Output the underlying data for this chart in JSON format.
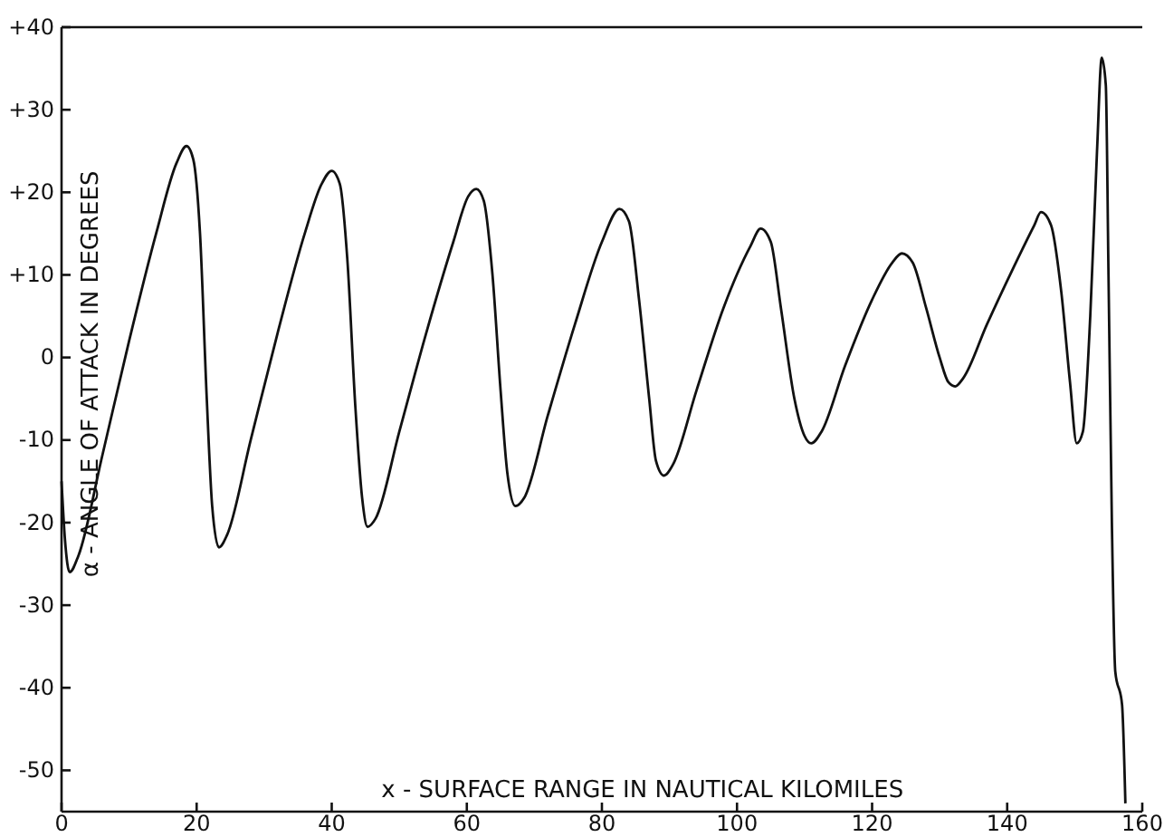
{
  "chart_data": {
    "type": "line",
    "xlabel": "x - SURFACE RANGE IN NAUTICAL KILOMILES",
    "ylabel": "α - ANGLE OF ATTACK IN DEGREES",
    "xlim": [
      0,
      160
    ],
    "ylim": [
      -55,
      40
    ],
    "xticks": [
      0,
      20,
      40,
      60,
      80,
      100,
      120,
      140,
      160
    ],
    "yticks": [
      {
        "value": 40,
        "label": "+40"
      },
      {
        "value": 30,
        "label": "+30"
      },
      {
        "value": 20,
        "label": "+20"
      },
      {
        "value": 10,
        "label": "+10"
      },
      0,
      {
        "value": -10,
        "label": "-10"
      },
      {
        "value": -20,
        "label": "-20"
      },
      {
        "value": -30,
        "label": "-30"
      },
      {
        "value": -40,
        "label": "-40"
      },
      {
        "value": -50,
        "label": "-50"
      }
    ],
    "grid": false,
    "line_style": "solid",
    "color": "#111111",
    "x": [
      0,
      0.5,
      1.2,
      2.5,
      6,
      10,
      14,
      17,
      18.5,
      19.5,
      20.5,
      21.5,
      22.3,
      23.3,
      24.5,
      28,
      32,
      36,
      38.5,
      40,
      41.2,
      42.3,
      43.5,
      44.5,
      45.3,
      46.5,
      50,
      54,
      58,
      60.2,
      61.4,
      62.5,
      63.8,
      65,
      66,
      67.2,
      68.5,
      72,
      76,
      80,
      82.6,
      84,
      85.5,
      87,
      88,
      89.2,
      90.5,
      94,
      98,
      102,
      103.5,
      105,
      106.5,
      108.5,
      110,
      111,
      112.5,
      116,
      120,
      123,
      124.4,
      126,
      128,
      130,
      131.3,
      132.3,
      133.5,
      137,
      141,
      144,
      145,
      146.5,
      148,
      149.3,
      150.3,
      151.2,
      152.3,
      153.3,
      154,
      154.6,
      155,
      155.5,
      156,
      157,
      157.5
    ],
    "values": [
      -15,
      -22,
      -26,
      -24,
      -12,
      2,
      15,
      23.5,
      25.6,
      24,
      15,
      -5,
      -18,
      -23,
      -21.5,
      -10,
      3,
      15,
      21,
      22.6,
      21,
      12,
      -6,
      -17,
      -20.5,
      -19.5,
      -9,
      3,
      14,
      19.5,
      20.4,
      19,
      10,
      -4,
      -14,
      -18,
      -17,
      -7,
      4,
      14,
      18,
      16.5,
      7,
      -5,
      -12.5,
      -14.3,
      -13,
      -4,
      6,
      13.5,
      15.6,
      14,
      6,
      -5,
      -9.5,
      -10.4,
      -9,
      -1,
      7,
      11.5,
      12.6,
      11.5,
      6,
      0,
      -3,
      -3.5,
      -2.5,
      4,
      11,
      16,
      17.6,
      16,
      8,
      -3,
      -10.4,
      -9,
      5,
      25,
      36.3,
      33,
      10,
      -20,
      -38,
      -42,
      -54
    ]
  }
}
